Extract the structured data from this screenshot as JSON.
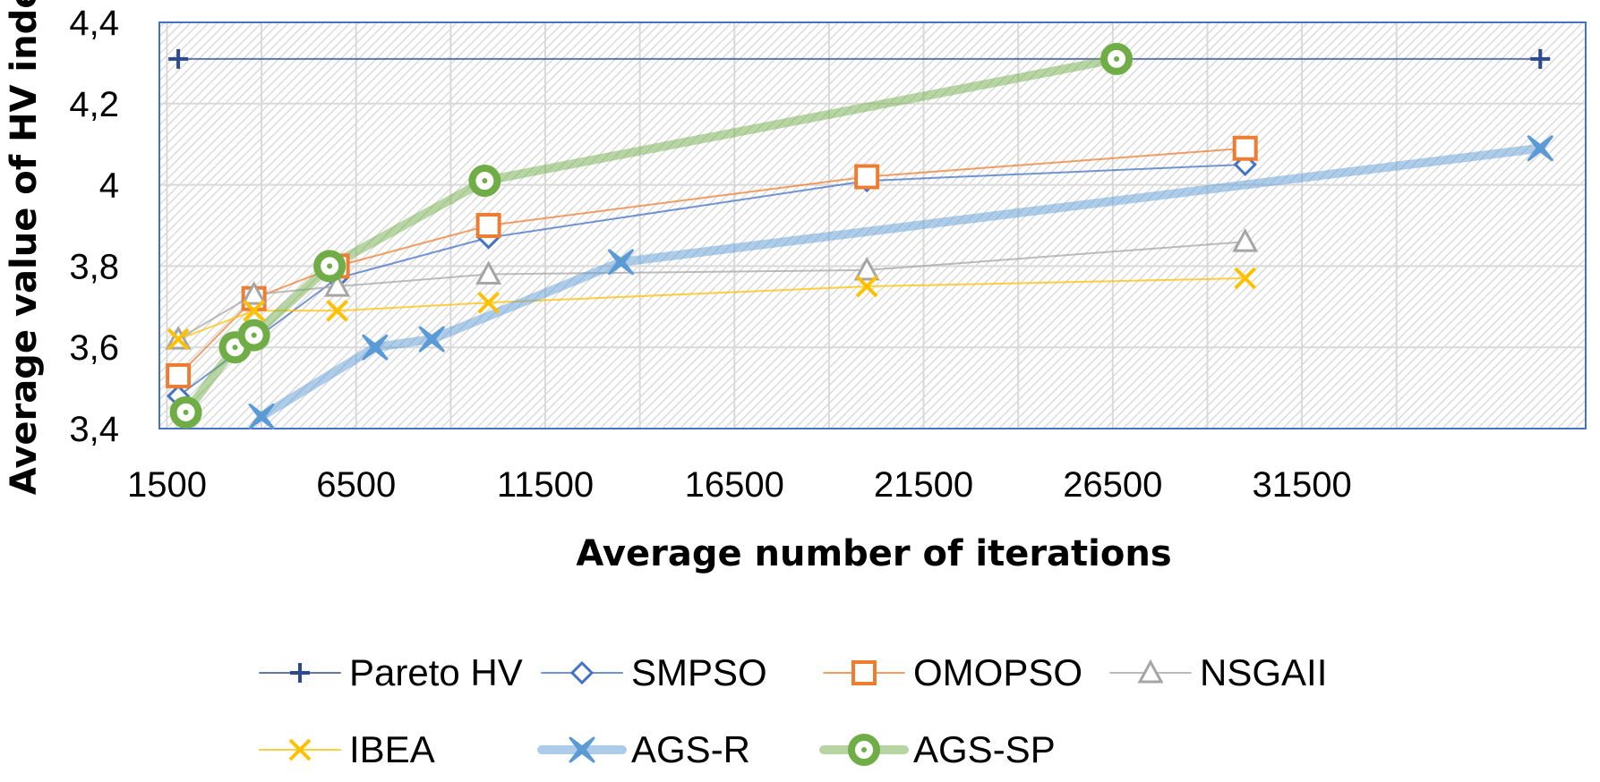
{
  "chart_data": {
    "type": "line",
    "title": "",
    "xlabel": "Average number of iterations",
    "ylabel": "Average value of HV index",
    "xlim": [
      1300,
      39000
    ],
    "ylim": [
      3.4,
      4.4
    ],
    "x_ticks": [
      1500,
      6500,
      11500,
      16500,
      21500,
      26500,
      31500
    ],
    "x_tick_labels": [
      "1500",
      "6500",
      "11500",
      "16500",
      "21500",
      "26500",
      "31500"
    ],
    "y_ticks": [
      3.4,
      3.6,
      3.8,
      4.0,
      4.2,
      4.4
    ],
    "y_tick_labels": [
      "3,4",
      "3,6",
      "3,8",
      "4",
      "4,2",
      "4,4"
    ],
    "grid": true,
    "legend_position": "bottom",
    "series": [
      {
        "name": "Pareto HV",
        "color": "#2F4A8C",
        "marker": "plus",
        "width": 2,
        "x": [
          1800,
          37800
        ],
        "y": [
          4.31,
          4.31
        ]
      },
      {
        "name": "SMPSO",
        "color": "#4472C4",
        "marker": "diamond",
        "width": 2,
        "x": [
          1800,
          6000,
          10000,
          20000,
          30000
        ],
        "y": [
          3.48,
          3.77,
          3.87,
          4.01,
          4.05
        ]
      },
      {
        "name": "OMOPSO",
        "color": "#ED7D31",
        "marker": "square",
        "width": 2,
        "x": [
          1800,
          3800,
          6000,
          10000,
          20000,
          30000
        ],
        "y": [
          3.53,
          3.72,
          3.8,
          3.9,
          4.02,
          4.09
        ]
      },
      {
        "name": "NSGAII",
        "color": "#A5A5A5",
        "marker": "triangle",
        "width": 2,
        "x": [
          1800,
          3800,
          6000,
          10000,
          20000,
          30000
        ],
        "y": [
          3.62,
          3.73,
          3.75,
          3.78,
          3.79,
          3.86
        ]
      },
      {
        "name": "IBEA",
        "color": "#FFC000",
        "marker": "x",
        "width": 2,
        "x": [
          1800,
          3800,
          6000,
          10000,
          20000,
          30000
        ],
        "y": [
          3.62,
          3.69,
          3.69,
          3.71,
          3.75,
          3.77
        ]
      },
      {
        "name": "AGS-R",
        "color": "#5B9BD5",
        "marker": "bowtie",
        "width": 10,
        "x": [
          4000,
          7000,
          8500,
          13500,
          37800
        ],
        "y": [
          3.43,
          3.6,
          3.62,
          3.81,
          4.09
        ]
      },
      {
        "name": "AGS-SP",
        "color": "#70AD47",
        "marker": "ring",
        "width": 10,
        "x": [
          2000,
          3300,
          3800,
          5800,
          9900,
          26600
        ],
        "y": [
          3.44,
          3.6,
          3.63,
          3.8,
          4.01,
          4.31
        ]
      }
    ]
  }
}
